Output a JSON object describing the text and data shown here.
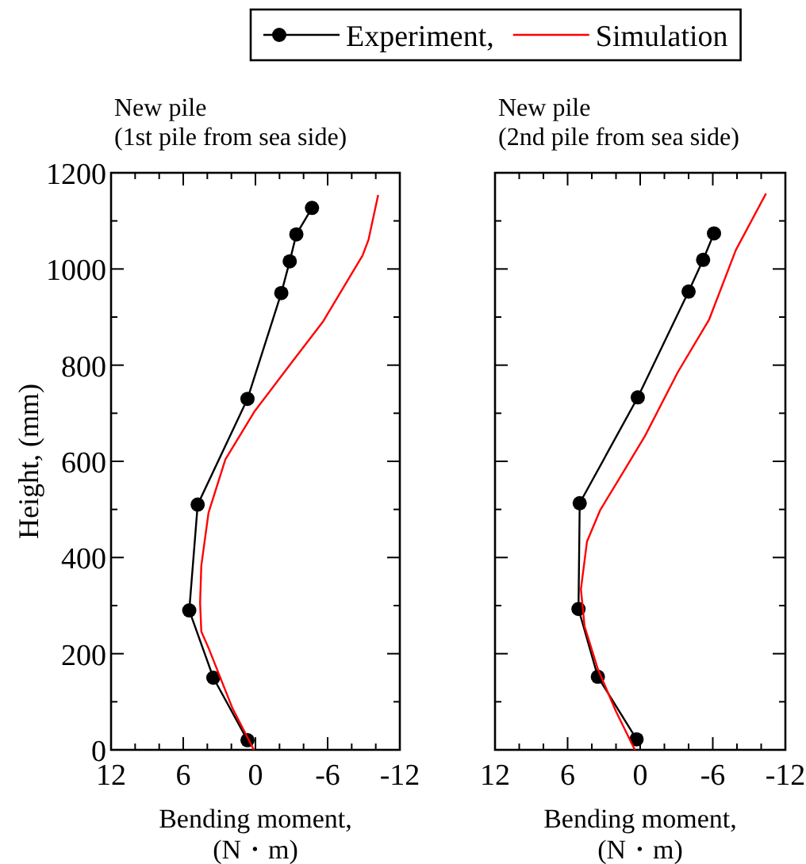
{
  "chart_data": [
    {
      "type": "line",
      "title": "New pile\n(1st pile from sea side)",
      "xlabel": "Bending moment,\n(N・m)",
      "ylabel": "Height, (mm)",
      "xlim": [
        12,
        -12
      ],
      "xticks": [
        12,
        6,
        0,
        -6,
        -12
      ],
      "ylim": [
        0,
        1200
      ],
      "yticks": [
        0,
        200,
        400,
        600,
        800,
        1000,
        1200
      ],
      "legend": "top",
      "series": [
        {
          "name": "Experiment,",
          "color": "#000000",
          "marker": "circle",
          "x": [
            0.66,
            3.5,
            5.5,
            4.8,
            0.66,
            -2.15,
            -2.85,
            -3.4,
            -4.7
          ],
          "values": [
            20,
            150,
            290,
            510,
            730,
            950,
            1016,
            1072,
            1127
          ]
        },
        {
          "name": "Simulation",
          "color": "#ff0000",
          "marker": "none",
          "x": [
            0.13,
            1.9,
            3.9,
            4.5,
            4.6,
            4.5,
            3.9,
            2.5,
            0.1,
            -2.9,
            -5.6,
            -8.9,
            -9.4,
            -10.2
          ],
          "values": [
            0,
            86,
            212,
            246,
            306,
            383,
            493,
            604,
            703,
            802,
            890,
            1028,
            1061,
            1154
          ]
        }
      ]
    },
    {
      "type": "line",
      "title": "New pile\n(2nd pile from sea side)",
      "xlabel": "Bending moment,\n(N・m)",
      "xlim": [
        12,
        -12
      ],
      "xticks": [
        12,
        6,
        0,
        -6,
        -12
      ],
      "ylim": [
        0,
        1200
      ],
      "yticks": [
        0,
        200,
        400,
        600,
        800,
        1000,
        1200
      ],
      "tick_labels": "x",
      "series": [
        {
          "name": "Experiment,",
          "color": "#000000",
          "marker": "circle",
          "x": [
            0.3,
            3.5,
            5.1,
            5.0,
            0.2,
            -4.0,
            -5.2,
            -6.1
          ],
          "values": [
            22,
            152,
            293,
            513,
            733,
            953,
            1019,
            1074
          ]
        },
        {
          "name": "Simulation",
          "color": "#ff0000",
          "marker": "none",
          "x": [
            0.44,
            2.0,
            3.5,
            4.6,
            4.9,
            4.4,
            3.3,
            1.7,
            -0.4,
            -3.1,
            -5.7,
            -7.9,
            -10.4
          ],
          "values": [
            0,
            80,
            168,
            257,
            334,
            433,
            499,
            565,
            653,
            785,
            895,
            1039,
            1157
          ]
        }
      ]
    }
  ]
}
